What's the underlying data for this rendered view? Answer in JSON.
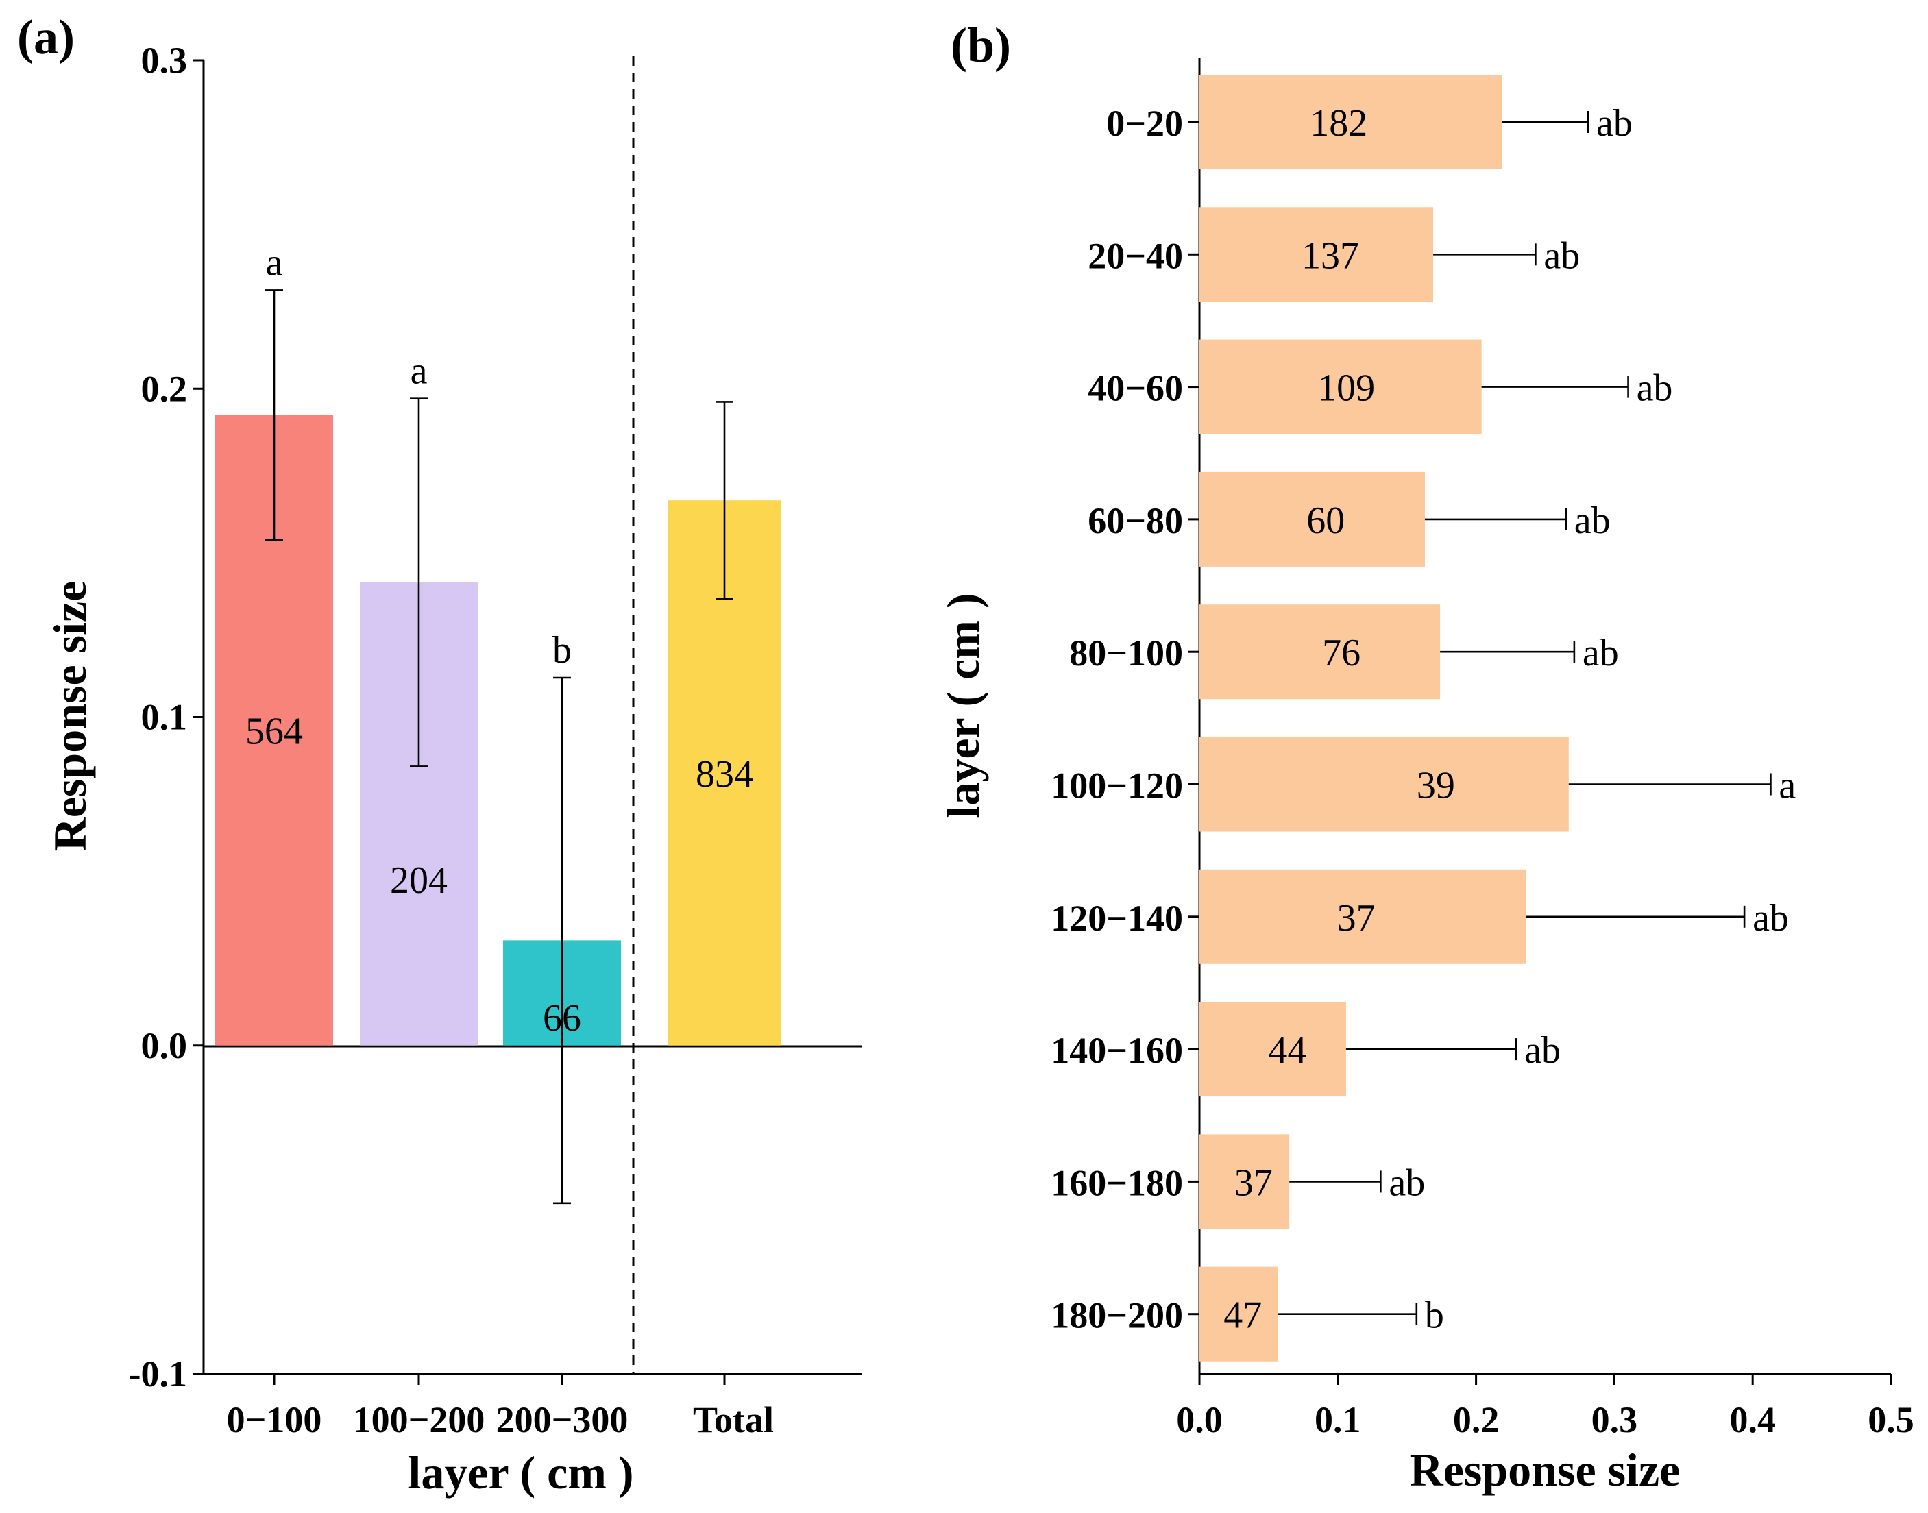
{
  "chart_data": [
    {
      "panel": "(a)",
      "type": "bar",
      "orientation": "vertical",
      "title": "",
      "xlabel": "layer ( cm )",
      "ylabel": "Response size",
      "ylim": [
        -0.1,
        0.3
      ],
      "yticks": [
        -0.1,
        0.0,
        0.1,
        0.2,
        0.3
      ],
      "ytick_labels": [
        "-0.1",
        "0.0",
        "0.1",
        "0.2",
        "0.3"
      ],
      "categories": [
        "0−100",
        "100−200",
        "200−300",
        "Total"
      ],
      "values": [
        0.192,
        0.141,
        0.032,
        0.166
      ],
      "ci_low": [
        0.154,
        0.085,
        -0.048,
        0.136
      ],
      "ci_high": [
        0.23,
        0.197,
        0.112,
        0.196
      ],
      "sample_sizes": [
        "564",
        "204",
        "66",
        "834"
      ],
      "letters": [
        "a",
        "a",
        "b",
        ""
      ],
      "colors": [
        "#f8837a",
        "#d6c8f2",
        "#2ec4c9",
        "#fdd64f"
      ],
      "separator_between": [
        "200−300",
        "Total"
      ],
      "grid": false
    },
    {
      "panel": "(b)",
      "type": "bar",
      "orientation": "horizontal",
      "title": "",
      "xlabel": "Response size",
      "ylabel": "layer ( cm )",
      "xlim": [
        0.0,
        0.5
      ],
      "xticks": [
        0.0,
        0.1,
        0.2,
        0.3,
        0.4,
        0.5
      ],
      "xtick_labels": [
        "0.0",
        "0.1",
        "0.2",
        "0.3",
        "0.4",
        "0.5"
      ],
      "categories": [
        "0−20",
        "20−40",
        "40−60",
        "60−80",
        "80−100",
        "100−120",
        "120−140",
        "140−160",
        "160−180",
        "180−200"
      ],
      "values": [
        0.219,
        0.169,
        0.204,
        0.163,
        0.174,
        0.267,
        0.236,
        0.106,
        0.065,
        0.057
      ],
      "err_high": [
        0.281,
        0.243,
        0.31,
        0.265,
        0.271,
        0.413,
        0.394,
        0.229,
        0.131,
        0.157
      ],
      "sample_sizes": [
        "182",
        "137",
        "109",
        "60",
        "76",
        "39",
        "37",
        "44",
        "37",
        "47"
      ],
      "letters": [
        "ab",
        "ab",
        "ab",
        "ab",
        "ab",
        "a",
        "ab",
        "ab",
        "ab",
        "b"
      ],
      "color": "#fbc99b",
      "grid": false
    }
  ]
}
